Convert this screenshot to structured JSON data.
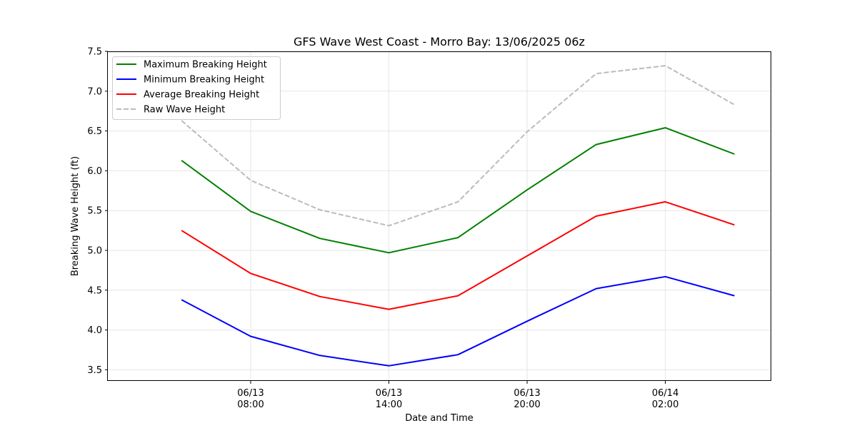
{
  "chart_data": {
    "type": "line",
    "title": "GFS Wave West Coast - Morro Bay: 13/06/2025 06z",
    "xlabel": "Date and Time",
    "ylabel": "Breaking Wave Height (ft)",
    "x": [
      "2025-06-13 05:00",
      "2025-06-13 08:00",
      "2025-06-13 11:00",
      "2025-06-13 14:00",
      "2025-06-13 17:00",
      "2025-06-13 20:00",
      "2025-06-13 23:00",
      "2025-06-14 02:00",
      "2025-06-14 05:00"
    ],
    "x_hours": [
      -3,
      0,
      3,
      6,
      9,
      12,
      15,
      18,
      21
    ],
    "xlim_hours": [
      -6.2,
      22.6
    ],
    "x_ticks": [
      {
        "hour": 0,
        "line1": "06/13",
        "line2": "08:00"
      },
      {
        "hour": 6,
        "line1": "06/13",
        "line2": "14:00"
      },
      {
        "hour": 12,
        "line1": "06/13",
        "line2": "20:00"
      },
      {
        "hour": 18,
        "line1": "06/14",
        "line2": "02:00"
      }
    ],
    "ylim": [
      3.36,
      7.5
    ],
    "y_ticks": [
      "3.5",
      "4.0",
      "4.5",
      "5.0",
      "5.5",
      "6.0",
      "6.5",
      "7.0",
      "7.5"
    ],
    "grid": true,
    "legend_placement": "top-left",
    "series": [
      {
        "name": "Maximum Breaking Height",
        "color": "#008000",
        "dash": "solid",
        "values": [
          6.13,
          5.49,
          5.15,
          4.97,
          5.16,
          5.76,
          6.33,
          6.54,
          6.21
        ]
      },
      {
        "name": "Minimum Breaking Height",
        "color": "#0000ff",
        "dash": "solid",
        "values": [
          4.38,
          3.92,
          3.68,
          3.55,
          3.69,
          4.11,
          4.52,
          4.67,
          4.43
        ]
      },
      {
        "name": "Average Breaking Height",
        "color": "#ff0000",
        "dash": "solid",
        "values": [
          5.25,
          4.71,
          4.42,
          4.26,
          4.43,
          4.93,
          5.43,
          5.61,
          5.32
        ]
      },
      {
        "name": "Raw Wave Height",
        "color": "#bbbbbb",
        "dash": "dashed",
        "values": [
          6.63,
          5.88,
          5.51,
          5.31,
          5.61,
          6.49,
          7.22,
          7.32,
          6.83
        ]
      }
    ]
  }
}
